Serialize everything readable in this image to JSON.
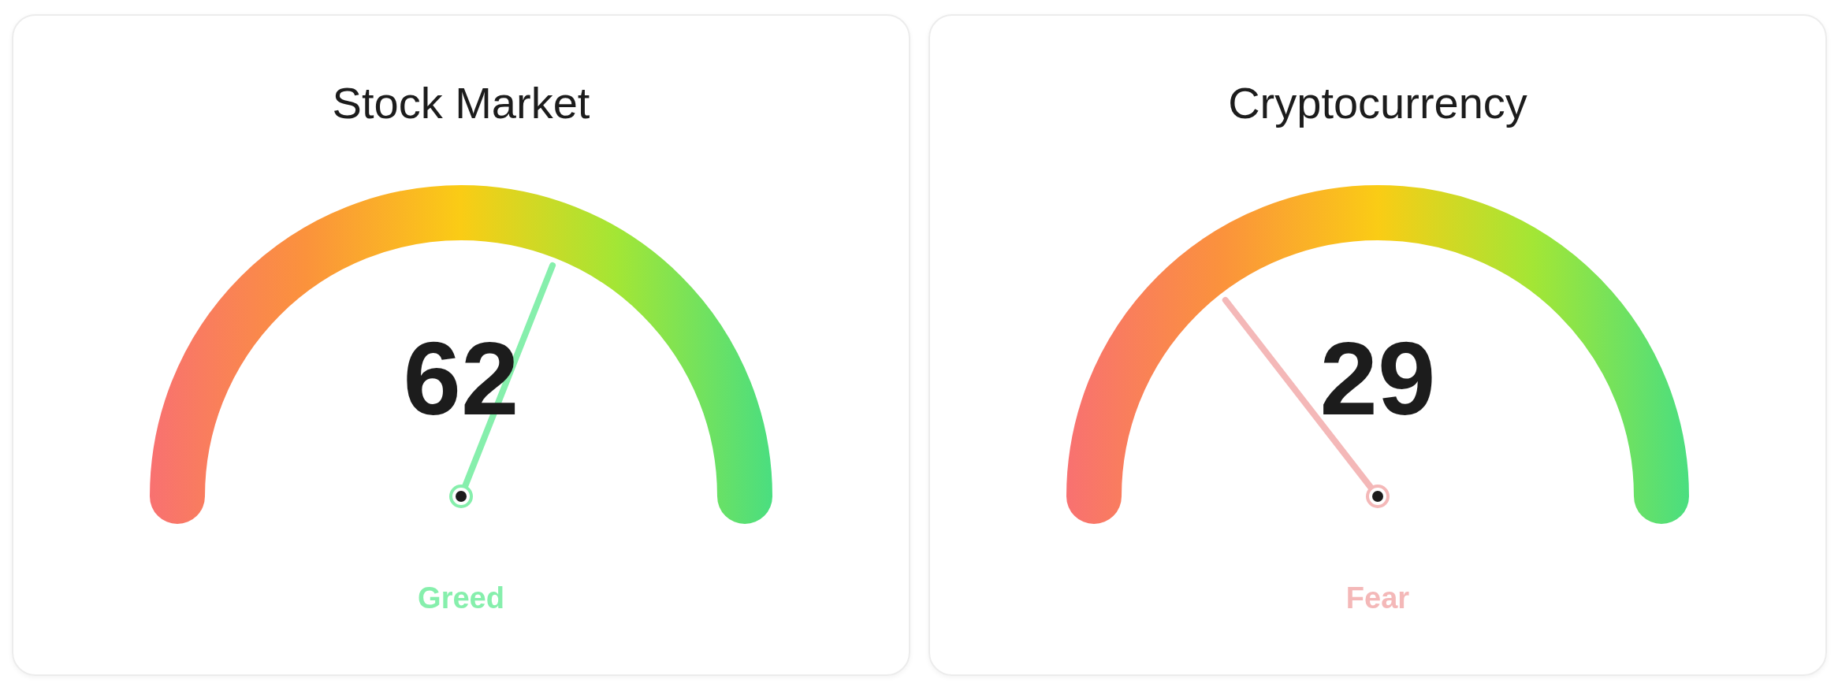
{
  "chart_data": [
    {
      "type": "other",
      "title": "Stock Market",
      "values": [
        62
      ],
      "value_labels": [
        "62"
      ],
      "color": "#86efac",
      "annotations": [
        "Greed"
      ]
    },
    {
      "type": "other",
      "title": "Cryptocurrency",
      "values": [
        29
      ],
      "value_labels": [
        "29"
      ],
      "color": "#f4b8b8",
      "annotations": [
        "Fear"
      ]
    }
  ]
}
